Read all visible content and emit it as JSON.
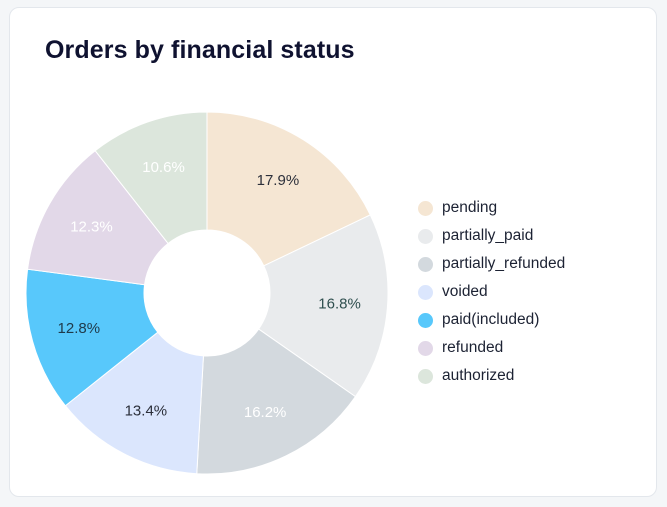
{
  "title": "Orders by financial status",
  "chart_data": {
    "type": "pie",
    "title": "Orders by financial status",
    "donut": true,
    "legend_position": "right",
    "slices": [
      {
        "name": "pending",
        "value": 17.9,
        "label": "17.9%",
        "color": "#f5e6d3",
        "label_color": "#2b2f3a"
      },
      {
        "name": "partially_paid",
        "value": 16.8,
        "label": "16.8%",
        "color": "#e9ebed",
        "label_color": "#2f4f4f"
      },
      {
        "name": "partially_refunded",
        "value": 16.2,
        "label": "16.2%",
        "color": "#d3d9de",
        "label_color": "#ffffff"
      },
      {
        "name": "voided",
        "value": 13.4,
        "label": "13.4%",
        "color": "#dbe6fd",
        "label_color": "#2b2f3a"
      },
      {
        "name": "paid(included)",
        "value": 12.8,
        "label": "12.8%",
        "color": "#58c8fb",
        "label_color": "#1f3a4a"
      },
      {
        "name": "refunded",
        "value": 12.3,
        "label": "12.3%",
        "color": "#e2d8e8",
        "label_color": "#ffffff"
      },
      {
        "name": "authorized",
        "value": 10.6,
        "label": "10.6%",
        "color": "#dce6dc",
        "label_color": "#ffffff"
      }
    ]
  }
}
